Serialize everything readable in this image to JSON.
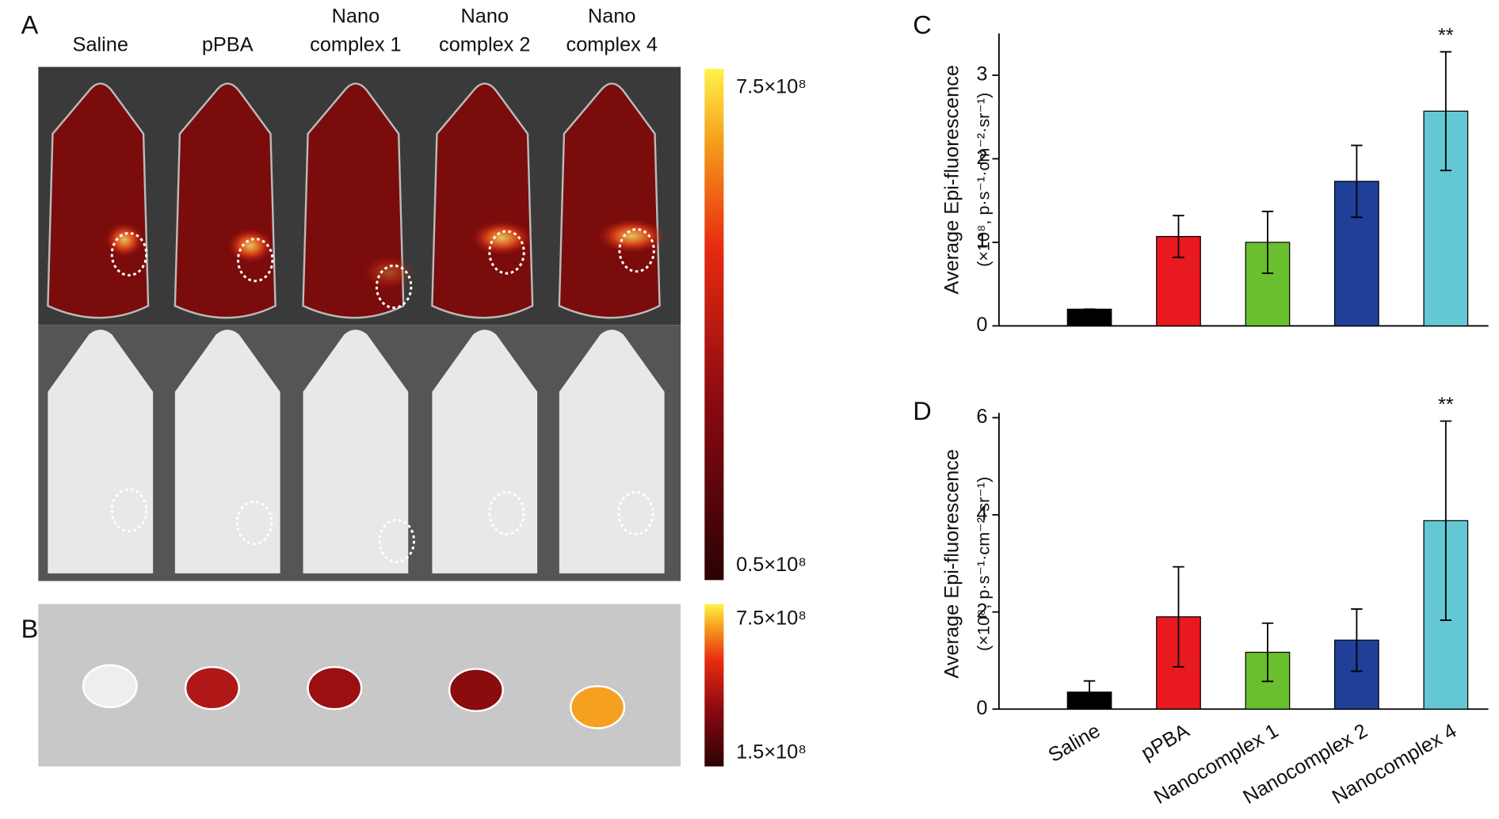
{
  "panel_labels": [
    "A",
    "B",
    "C",
    "D"
  ],
  "images": {
    "columns": [
      [
        "Saline"
      ],
      [
        "pPBA"
      ],
      [
        "Nano",
        "complex 1"
      ],
      [
        "Nano",
        "complex 2"
      ],
      [
        "Nano",
        "complex 4"
      ]
    ],
    "colorbar_a": {
      "max": "7.5×10⁸",
      "min": "0.5×10⁸"
    },
    "colorbar_b": {
      "max": "7.5×10⁸",
      "min": "1.5×10⁸"
    }
  },
  "chart_data": [
    {
      "type": "bar",
      "y_label": [
        "Average Epi-fluorescence",
        "(×10⁸, p·s⁻¹·cm⁻²·sr⁻¹)"
      ],
      "categories": [
        null,
        null,
        null,
        null,
        null
      ],
      "values": [
        0.2,
        1.07,
        1.0,
        1.73,
        2.57
      ],
      "errors": [
        0,
        0.25,
        0.37,
        0.43,
        0.71
      ],
      "colors": [
        "#000000",
        "#e8191f",
        "#6abf2e",
        "#1f3f99",
        "#63c8d3"
      ],
      "annotations": [
        null,
        null,
        null,
        null,
        "**"
      ],
      "ylim": [
        0,
        3.5
      ],
      "yticks": [
        0,
        1,
        2,
        3
      ]
    },
    {
      "type": "bar",
      "y_label": [
        "Average Epi-fluorescence",
        "(×10⁸, p·s⁻¹·cm⁻²·sr⁻¹)"
      ],
      "categories": [
        "Saline",
        "pPBA",
        "Nanocomplex 1",
        "Nanocomplex 2",
        "Nanocomplex 4"
      ],
      "values": [
        0.35,
        1.9,
        1.17,
        1.42,
        3.88
      ],
      "errors": [
        0.23,
        1.03,
        0.6,
        0.64,
        2.05
      ],
      "colors": [
        "#000000",
        "#e8191f",
        "#6abf2e",
        "#1f3f99",
        "#63c8d3"
      ],
      "annotations": [
        null,
        null,
        null,
        null,
        "**"
      ],
      "ylim": [
        0,
        6.1
      ],
      "yticks": [
        0,
        2,
        4,
        6
      ]
    }
  ]
}
